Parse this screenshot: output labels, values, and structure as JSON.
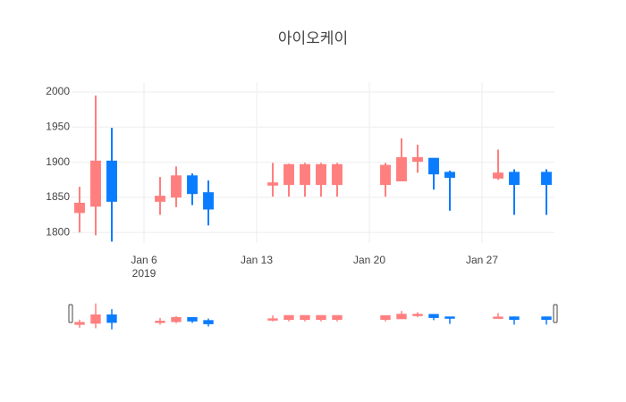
{
  "chart_data": {
    "type": "candlestick",
    "title": "아이오케이",
    "x": [
      "2019-01-02",
      "2019-01-03",
      "2019-01-04",
      "2019-01-07",
      "2019-01-08",
      "2019-01-09",
      "2019-01-10",
      "2019-01-14",
      "2019-01-15",
      "2019-01-16",
      "2019-01-17",
      "2019-01-18",
      "2019-01-21",
      "2019-01-22",
      "2019-01-23",
      "2019-01-24",
      "2019-01-25",
      "2019-01-28",
      "2019-01-29",
      "2019-01-31"
    ],
    "open": [
      1829,
      1838,
      1901,
      1845,
      1851,
      1880,
      1856,
      1868,
      1869,
      1869,
      1869,
      1869,
      1869,
      1874,
      1902,
      1905,
      1885,
      1878,
      1885,
      1885
    ],
    "high": [
      1865,
      1995,
      1949,
      1879,
      1894,
      1884,
      1874,
      1899,
      1898,
      1899,
      1899,
      1899,
      1899,
      1934,
      1925,
      1905,
      1888,
      1918,
      1890,
      1890
    ],
    "low": [
      1800,
      1796,
      1787,
      1825,
      1836,
      1839,
      1810,
      1851,
      1851,
      1851,
      1851,
      1851,
      1851,
      1874,
      1885,
      1861,
      1831,
      1875,
      1825,
      1825
    ],
    "close": [
      1841,
      1901,
      1845,
      1851,
      1880,
      1856,
      1834,
      1870,
      1896,
      1896,
      1896,
      1896,
      1895,
      1906,
      1906,
      1884,
      1879,
      1884,
      1869,
      1869
    ],
    "increasing_color": "#ff7f7f",
    "decreasing_color": "#0a7cff",
    "xlim": [
      "2019-01-01T12:00:00Z",
      "2019-01-31T12:00:00Z"
    ],
    "xticks": [
      {
        "value": "2019-01-06",
        "label": "Jan 6"
      },
      {
        "value": "2019-01-13",
        "label": "Jan 13"
      },
      {
        "value": "2019-01-20",
        "label": "Jan 20"
      },
      {
        "value": "2019-01-27",
        "label": "Jan 27"
      }
    ],
    "x_year_label": "2019",
    "ylim": [
      1785,
      2014
    ],
    "yticks": [
      1800,
      1850,
      1900,
      1950,
      2000
    ],
    "grid": true,
    "range_slider": true
  }
}
